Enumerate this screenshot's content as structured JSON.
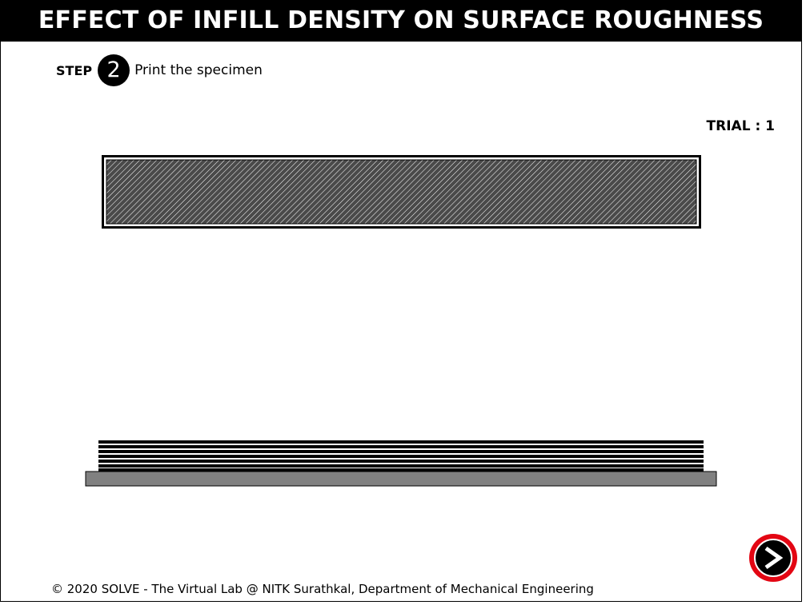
{
  "header": {
    "title": "EFFECT OF INFILL DENSITY ON SURFACE ROUGHNESS"
  },
  "step": {
    "label": "STEP",
    "number": "2",
    "text": "Print the specimen"
  },
  "trial": {
    "text": "TRIAL : 1"
  },
  "specimen": {
    "fill_color": "#4a4a4a",
    "hatch_color": "#ffffff",
    "border_color": "#000000"
  },
  "build_plate": {
    "color": "#808080",
    "layer_count": 7
  },
  "next_button": {
    "icon": "arrow-right-icon",
    "accent": "#e30613"
  },
  "footer": {
    "text": "© 2020 SOLVE - The Virtual Lab @ NITK Surathkal, Department of Mechanical Engineering"
  }
}
